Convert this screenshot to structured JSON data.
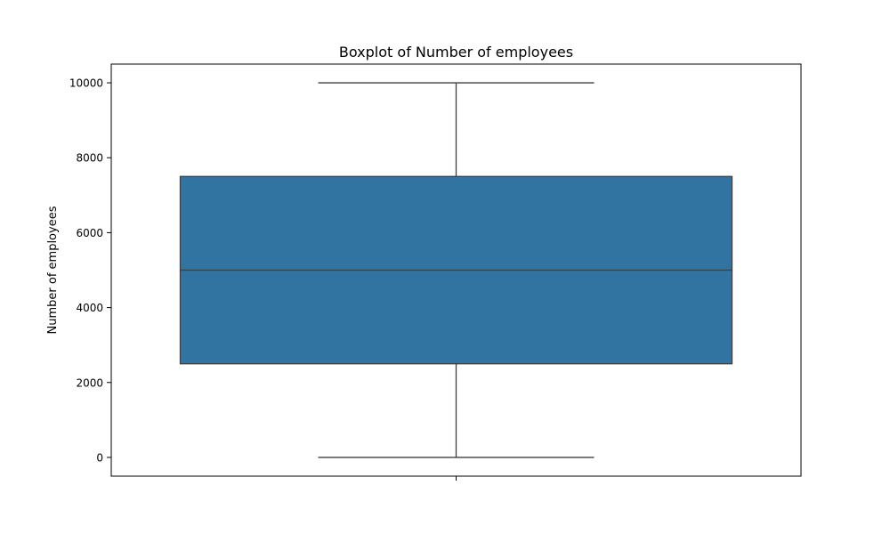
{
  "chart_data": {
    "type": "box",
    "title": "Boxplot of Number of employees",
    "xlabel": "",
    "ylabel": "Number of employees",
    "ylim": [
      -500,
      10500
    ],
    "yticks": [
      0,
      2000,
      4000,
      6000,
      8000,
      10000
    ],
    "ytick_labels": [
      "0",
      "2000",
      "4000",
      "6000",
      "8000",
      "10000"
    ],
    "grid": false,
    "legend": "none",
    "boxes": [
      {
        "whisker_low": 0,
        "q1": 2500,
        "median": 5000,
        "q3": 7500,
        "whisker_high": 10000
      }
    ]
  },
  "colors": {
    "box_fill": "#3274a1",
    "line": "#3f3f3f",
    "axis": "#000000"
  }
}
